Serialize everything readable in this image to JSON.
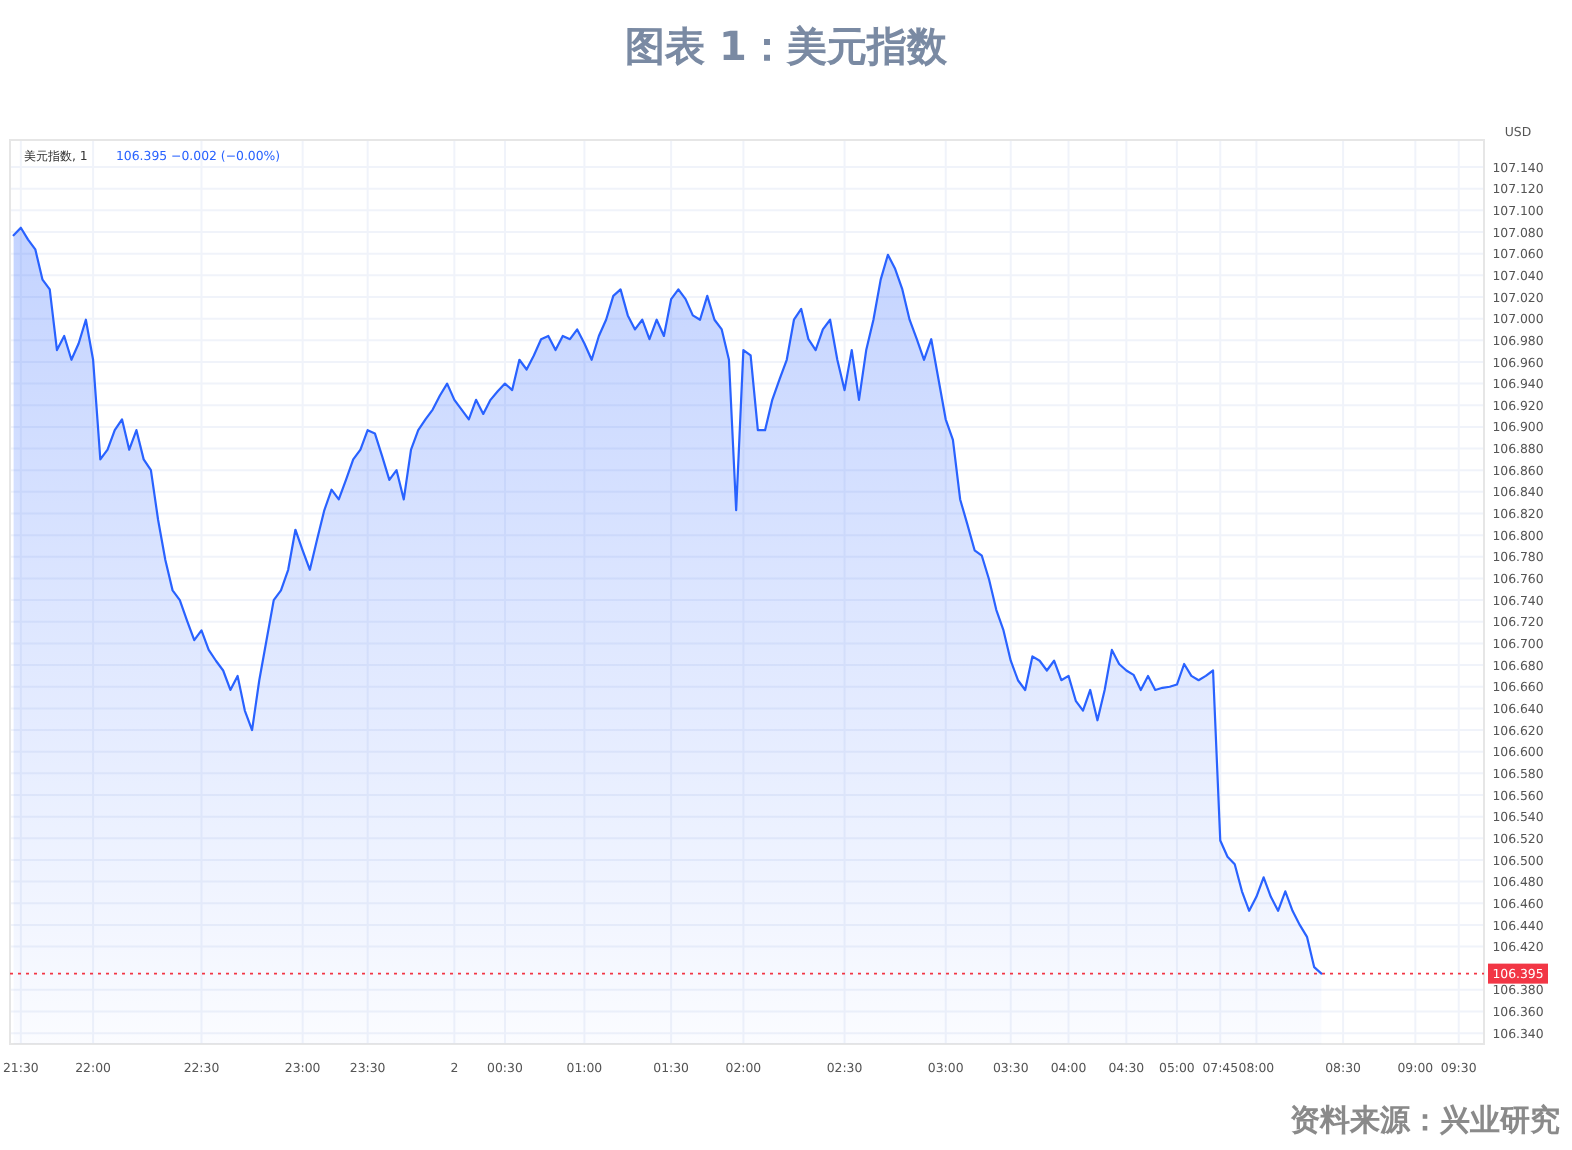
{
  "chart_data": {
    "type": "area",
    "title": "图表 1：美元指数",
    "ylabel": "USD",
    "annotations": [
      "美元指数, 1",
      "106.395 −0.002 (−0.00%)",
      "资料来源：兴业研究"
    ],
    "color": "#2962ff",
    "categories": [
      null,
      "21:30",
      null,
      null,
      null,
      null,
      null,
      null,
      null,
      null,
      null,
      "22:00",
      null,
      null,
      null,
      null,
      null,
      null,
      null,
      null,
      null,
      null,
      null,
      null,
      null,
      null,
      "22:30",
      null,
      null,
      null,
      null,
      null,
      null,
      null,
      null,
      null,
      null,
      null,
      null,
      null,
      "23:00",
      null,
      null,
      null,
      null,
      null,
      null,
      null,
      null,
      "23:30",
      null,
      null,
      null,
      null,
      null,
      null,
      null,
      null,
      null,
      null,
      null,
      "2",
      null,
      null,
      null,
      null,
      null,
      null,
      "00:30",
      null,
      null,
      null,
      null,
      null,
      null,
      null,
      null,
      null,
      null,
      "01:00",
      null,
      null,
      null,
      null,
      null,
      null,
      null,
      null,
      null,
      null,
      null,
      "01:30",
      null,
      null,
      null,
      null,
      null,
      null,
      null,
      null,
      null,
      "02:00",
      null,
      null,
      null,
      null,
      null,
      null,
      null,
      null,
      null,
      null,
      null,
      null,
      null,
      "02:30",
      null,
      null,
      null,
      null,
      null,
      null,
      null,
      null,
      null,
      null,
      null,
      null,
      null,
      "03:00",
      null,
      null,
      null,
      null,
      null,
      null,
      null,
      null,
      "03:30",
      null,
      null,
      null,
      null,
      null,
      null,
      null,
      "04:00",
      null,
      null,
      null,
      null,
      null,
      null,
      null,
      "04:30",
      null,
      null,
      null,
      null,
      null,
      null,
      "05:00",
      null,
      null,
      null,
      null,
      null,
      "07:45",
      null,
      null,
      null,
      null,
      "08:00",
      null,
      null,
      null,
      null,
      null,
      null,
      null,
      null,
      null,
      null,
      null,
      "08:30",
      null,
      null,
      null,
      null,
      null,
      null,
      null,
      null,
      null,
      "09:00",
      null,
      null,
      null,
      null,
      null,
      "09:30",
      null,
      null,
      null
    ],
    "values": [
      107.077,
      107.084,
      107.073,
      107.064,
      107.036,
      107.027,
      106.971,
      106.984,
      106.962,
      106.977,
      106.999,
      106.962,
      106.87,
      106.879,
      106.897,
      106.907,
      106.879,
      106.897,
      106.87,
      106.86,
      106.814,
      106.777,
      106.749,
      106.74,
      106.721,
      106.703,
      106.712,
      106.694,
      106.684,
      106.675,
      106.657,
      106.67,
      106.638,
      106.62,
      106.666,
      106.703,
      106.74,
      106.749,
      106.768,
      106.805,
      106.786,
      106.768,
      106.796,
      106.823,
      106.842,
      106.833,
      106.851,
      106.87,
      106.879,
      106.897,
      106.894,
      106.873,
      106.851,
      106.86,
      106.833,
      106.879,
      106.897,
      106.907,
      106.916,
      106.929,
      106.94,
      106.925,
      106.916,
      106.907,
      106.925,
      106.912,
      106.925,
      106.933,
      106.94,
      106.934,
      106.962,
      106.953,
      106.966,
      106.981,
      106.984,
      106.971,
      106.984,
      106.981,
      106.99,
      106.977,
      106.962,
      106.984,
      106.999,
      107.021,
      107.027,
      107.003,
      106.99,
      106.999,
      106.981,
      106.999,
      106.984,
      107.018,
      107.027,
      107.018,
      107.003,
      106.999,
      107.021,
      106.999,
      106.99,
      106.962,
      106.823,
      106.971,
      106.966,
      106.897,
      106.897,
      106.925,
      106.944,
      106.962,
      106.999,
      107.009,
      106.981,
      106.971,
      106.99,
      106.999,
      106.962,
      106.934,
      106.971,
      106.925,
      106.971,
      106.999,
      107.036,
      107.059,
      107.046,
      107.027,
      106.999,
      106.981,
      106.962,
      106.981,
      106.944,
      106.907,
      106.888,
      106.833,
      106.81,
      106.786,
      106.781,
      106.759,
      106.731,
      106.712,
      106.684,
      106.666,
      106.657,
      106.688,
      106.684,
      106.675,
      106.684,
      106.666,
      106.67,
      106.647,
      106.638,
      106.657,
      106.629,
      106.657,
      106.694,
      106.681,
      106.675,
      106.671,
      106.657,
      106.67,
      106.657,
      106.659,
      106.66,
      106.662,
      106.681,
      106.67,
      106.666,
      106.67,
      106.675,
      106.518,
      106.503,
      106.496,
      106.471,
      106.453,
      106.466,
      106.484,
      106.466,
      106.453,
      106.471,
      106.453,
      106.44,
      106.429,
      106.401,
      106.395,
      null,
      null,
      null,
      null,
      null,
      null,
      null,
      null,
      null,
      null,
      null,
      null,
      null,
      null,
      null,
      null,
      null,
      null,
      null,
      null,
      null,
      null
    ],
    "ylim": [
      106.33,
      107.165
    ],
    "yticks": [
      {
        "value": 107.14,
        "label": "107.140"
      },
      {
        "value": 107.12,
        "label": "107.120"
      },
      {
        "value": 107.1,
        "label": "107.100"
      },
      {
        "value": 107.08,
        "label": "107.080"
      },
      {
        "value": 107.06,
        "label": "107.060"
      },
      {
        "value": 107.04,
        "label": "107.040"
      },
      {
        "value": 107.02,
        "label": "107.020"
      },
      {
        "value": 107.0,
        "label": "107.000"
      },
      {
        "value": 106.98,
        "label": "106.980"
      },
      {
        "value": 106.96,
        "label": "106.960"
      },
      {
        "value": 106.94,
        "label": "106.940"
      },
      {
        "value": 106.92,
        "label": "106.920"
      },
      {
        "value": 106.9,
        "label": "106.900"
      },
      {
        "value": 106.88,
        "label": "106.880"
      },
      {
        "value": 106.86,
        "label": "106.860"
      },
      {
        "value": 106.84,
        "label": "106.840"
      },
      {
        "value": 106.82,
        "label": "106.820"
      },
      {
        "value": 106.8,
        "label": "106.800"
      },
      {
        "value": 106.78,
        "label": "106.780"
      },
      {
        "value": 106.76,
        "label": "106.760"
      },
      {
        "value": 106.74,
        "label": "106.740"
      },
      {
        "value": 106.72,
        "label": "106.720"
      },
      {
        "value": 106.7,
        "label": "106.700"
      },
      {
        "value": 106.68,
        "label": "106.680"
      },
      {
        "value": 106.66,
        "label": "106.660"
      },
      {
        "value": 106.64,
        "label": "106.640"
      },
      {
        "value": 106.62,
        "label": "106.620"
      },
      {
        "value": 106.6,
        "label": "106.600"
      },
      {
        "value": 106.58,
        "label": "106.580"
      },
      {
        "value": 106.56,
        "label": "106.560"
      },
      {
        "value": 106.54,
        "label": "106.540"
      },
      {
        "value": 106.52,
        "label": "106.520"
      },
      {
        "value": 106.5,
        "label": "106.500"
      },
      {
        "value": 106.48,
        "label": "106.480"
      },
      {
        "value": 106.46,
        "label": "106.460"
      },
      {
        "value": 106.44,
        "label": "106.440"
      },
      {
        "value": 106.42,
        "label": "106.420"
      },
      {
        "value": 106.38,
        "label": "106.380"
      },
      {
        "value": 106.36,
        "label": "106.360"
      },
      {
        "value": 106.34,
        "label": "106.340"
      }
    ],
    "grid": true,
    "ref_lines": [
      {
        "axis": "y",
        "value": 106.395,
        "label": "106.395",
        "color": "#f23645",
        "line_style": "dotted"
      }
    ]
  }
}
